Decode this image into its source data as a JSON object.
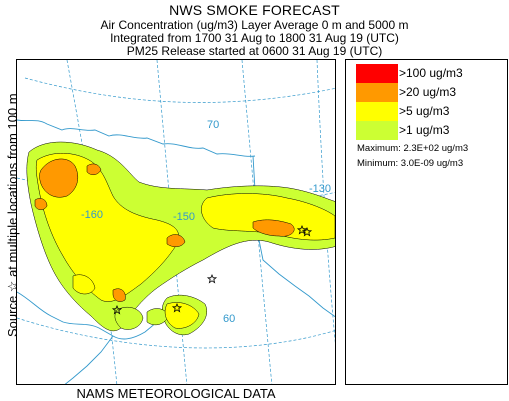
{
  "header": {
    "title": "NWS SMOKE FORECAST",
    "line1": "Air Concentration (ug/m3) Layer Average    0 m and  5000 m",
    "line2": "Integrated from 1700 31 Aug to 1800 31 Aug 19 (UTC)",
    "line3": "PM25 Release started at 0600 31 Aug 19 (UTC)"
  },
  "side_label": "Source ☆ at multiple locations  from  100 m",
  "footer": "NAMS METEOROLOGICAL DATA",
  "map_labels": {
    "lat70": "70",
    "lat60": "60",
    "lon130": "-130",
    "lon150": "-150",
    "lon160": "-160"
  },
  "legend": {
    "entries": [
      {
        "label": ">100 ug/m3",
        "color": "#ff0000"
      },
      {
        "label": ">20 ug/m3",
        "color": "#ff9900"
      },
      {
        "label": ">5 ug/m3",
        "color": "#ffff00"
      },
      {
        "label": ">1 ug/m3",
        "color": "#ccff33"
      }
    ],
    "maximum": "Maximum: 2.3E+02 ug/m3",
    "minimum": "Minimum: 3.0E-09 ug/m3"
  },
  "colors": {
    "coast": "#3399cc",
    "grid": "#3399cc"
  }
}
